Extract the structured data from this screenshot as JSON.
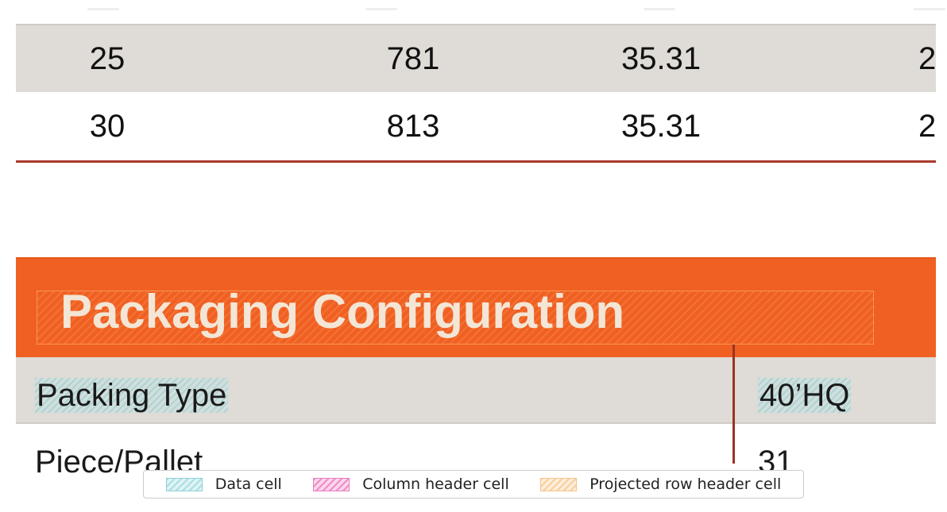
{
  "numeric_table": {
    "rows": [
      {
        "cells": [
          "25",
          "781",
          "35.31",
          "2"
        ]
      },
      {
        "cells": [
          "30",
          "813",
          "35.31",
          "2"
        ]
      }
    ]
  },
  "section": {
    "title": "Packaging Configuration"
  },
  "packaging_table": {
    "rows": [
      {
        "label": "Packing Type",
        "value": "40’HQ"
      },
      {
        "label": "Piece/Pallet",
        "value": "31"
      }
    ]
  },
  "legend": {
    "items": [
      {
        "label": "Data cell"
      },
      {
        "label": "Column header cell"
      },
      {
        "label": "Projected row header cell"
      }
    ]
  },
  "colors": {
    "section_bg": "#f06022",
    "section_text": "#f3e6d6",
    "row_shade": "#dfdbd6",
    "rule": "#a93a2a"
  }
}
